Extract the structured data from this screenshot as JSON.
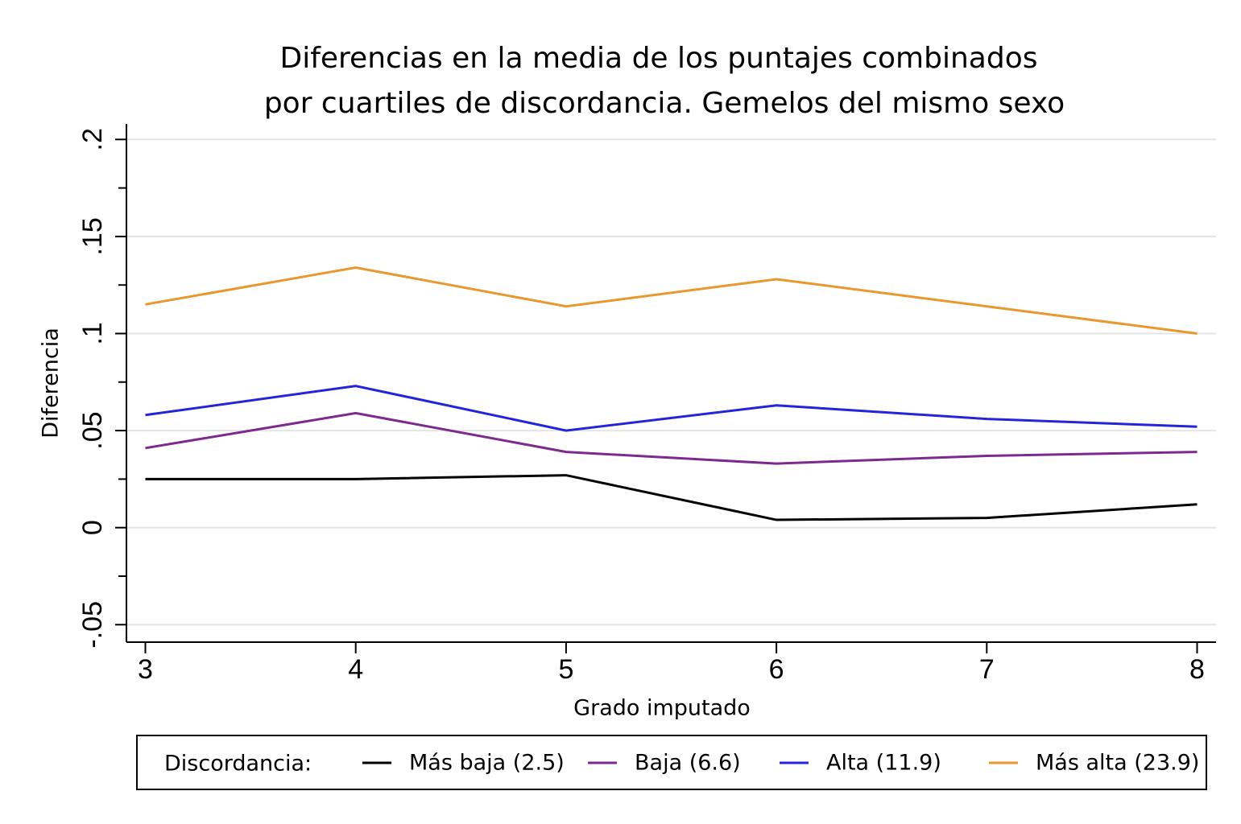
{
  "chart_data": {
    "type": "line",
    "title": [
      "Diferencias en la media de los puntajes combinados",
      "por cuartiles de discordancia. Gemelos del mismo sexo"
    ],
    "x_label": "Grado imputado",
    "y_label": "Diferencia",
    "x": [
      3,
      4,
      5,
      6,
      7,
      8
    ],
    "xlim": [
      2.91,
      8.09
    ],
    "xticks": [
      3,
      4,
      5,
      6,
      7,
      8
    ],
    "ylim": [
      -0.059,
      0.208
    ],
    "yticks": [
      {
        "value": -0.05,
        "label": "-.05"
      },
      0,
      {
        "value": 0.05,
        "label": ".05"
      },
      {
        "value": 0.1,
        "label": ".1"
      },
      {
        "value": 0.15,
        "label": ".15"
      },
      {
        "value": 0.2,
        "label": ".2"
      }
    ],
    "yticks_minor": [
      -0.025,
      0.025,
      0.075,
      0.125,
      0.175
    ],
    "grid": true,
    "legend_title": "Discordancia:",
    "legend_position": "bottom",
    "series": [
      {
        "name": "Más baja (2.5)",
        "color": "#000000",
        "values": [
          0.025,
          0.025,
          0.027,
          0.004,
          0.005,
          0.012
        ]
      },
      {
        "name": "Baja (6.6)",
        "color": "#7d2a8e",
        "values": [
          0.041,
          0.059,
          0.039,
          0.033,
          0.037,
          0.039
        ]
      },
      {
        "name": "Alta (11.9)",
        "color": "#2424d8",
        "values": [
          0.058,
          0.073,
          0.05,
          0.063,
          0.056,
          0.052
        ]
      },
      {
        "name": "Más alta (23.9)",
        "color": "#e8982e",
        "values": [
          0.115,
          0.134,
          0.114,
          0.128,
          0.114,
          0.1
        ]
      }
    ]
  }
}
